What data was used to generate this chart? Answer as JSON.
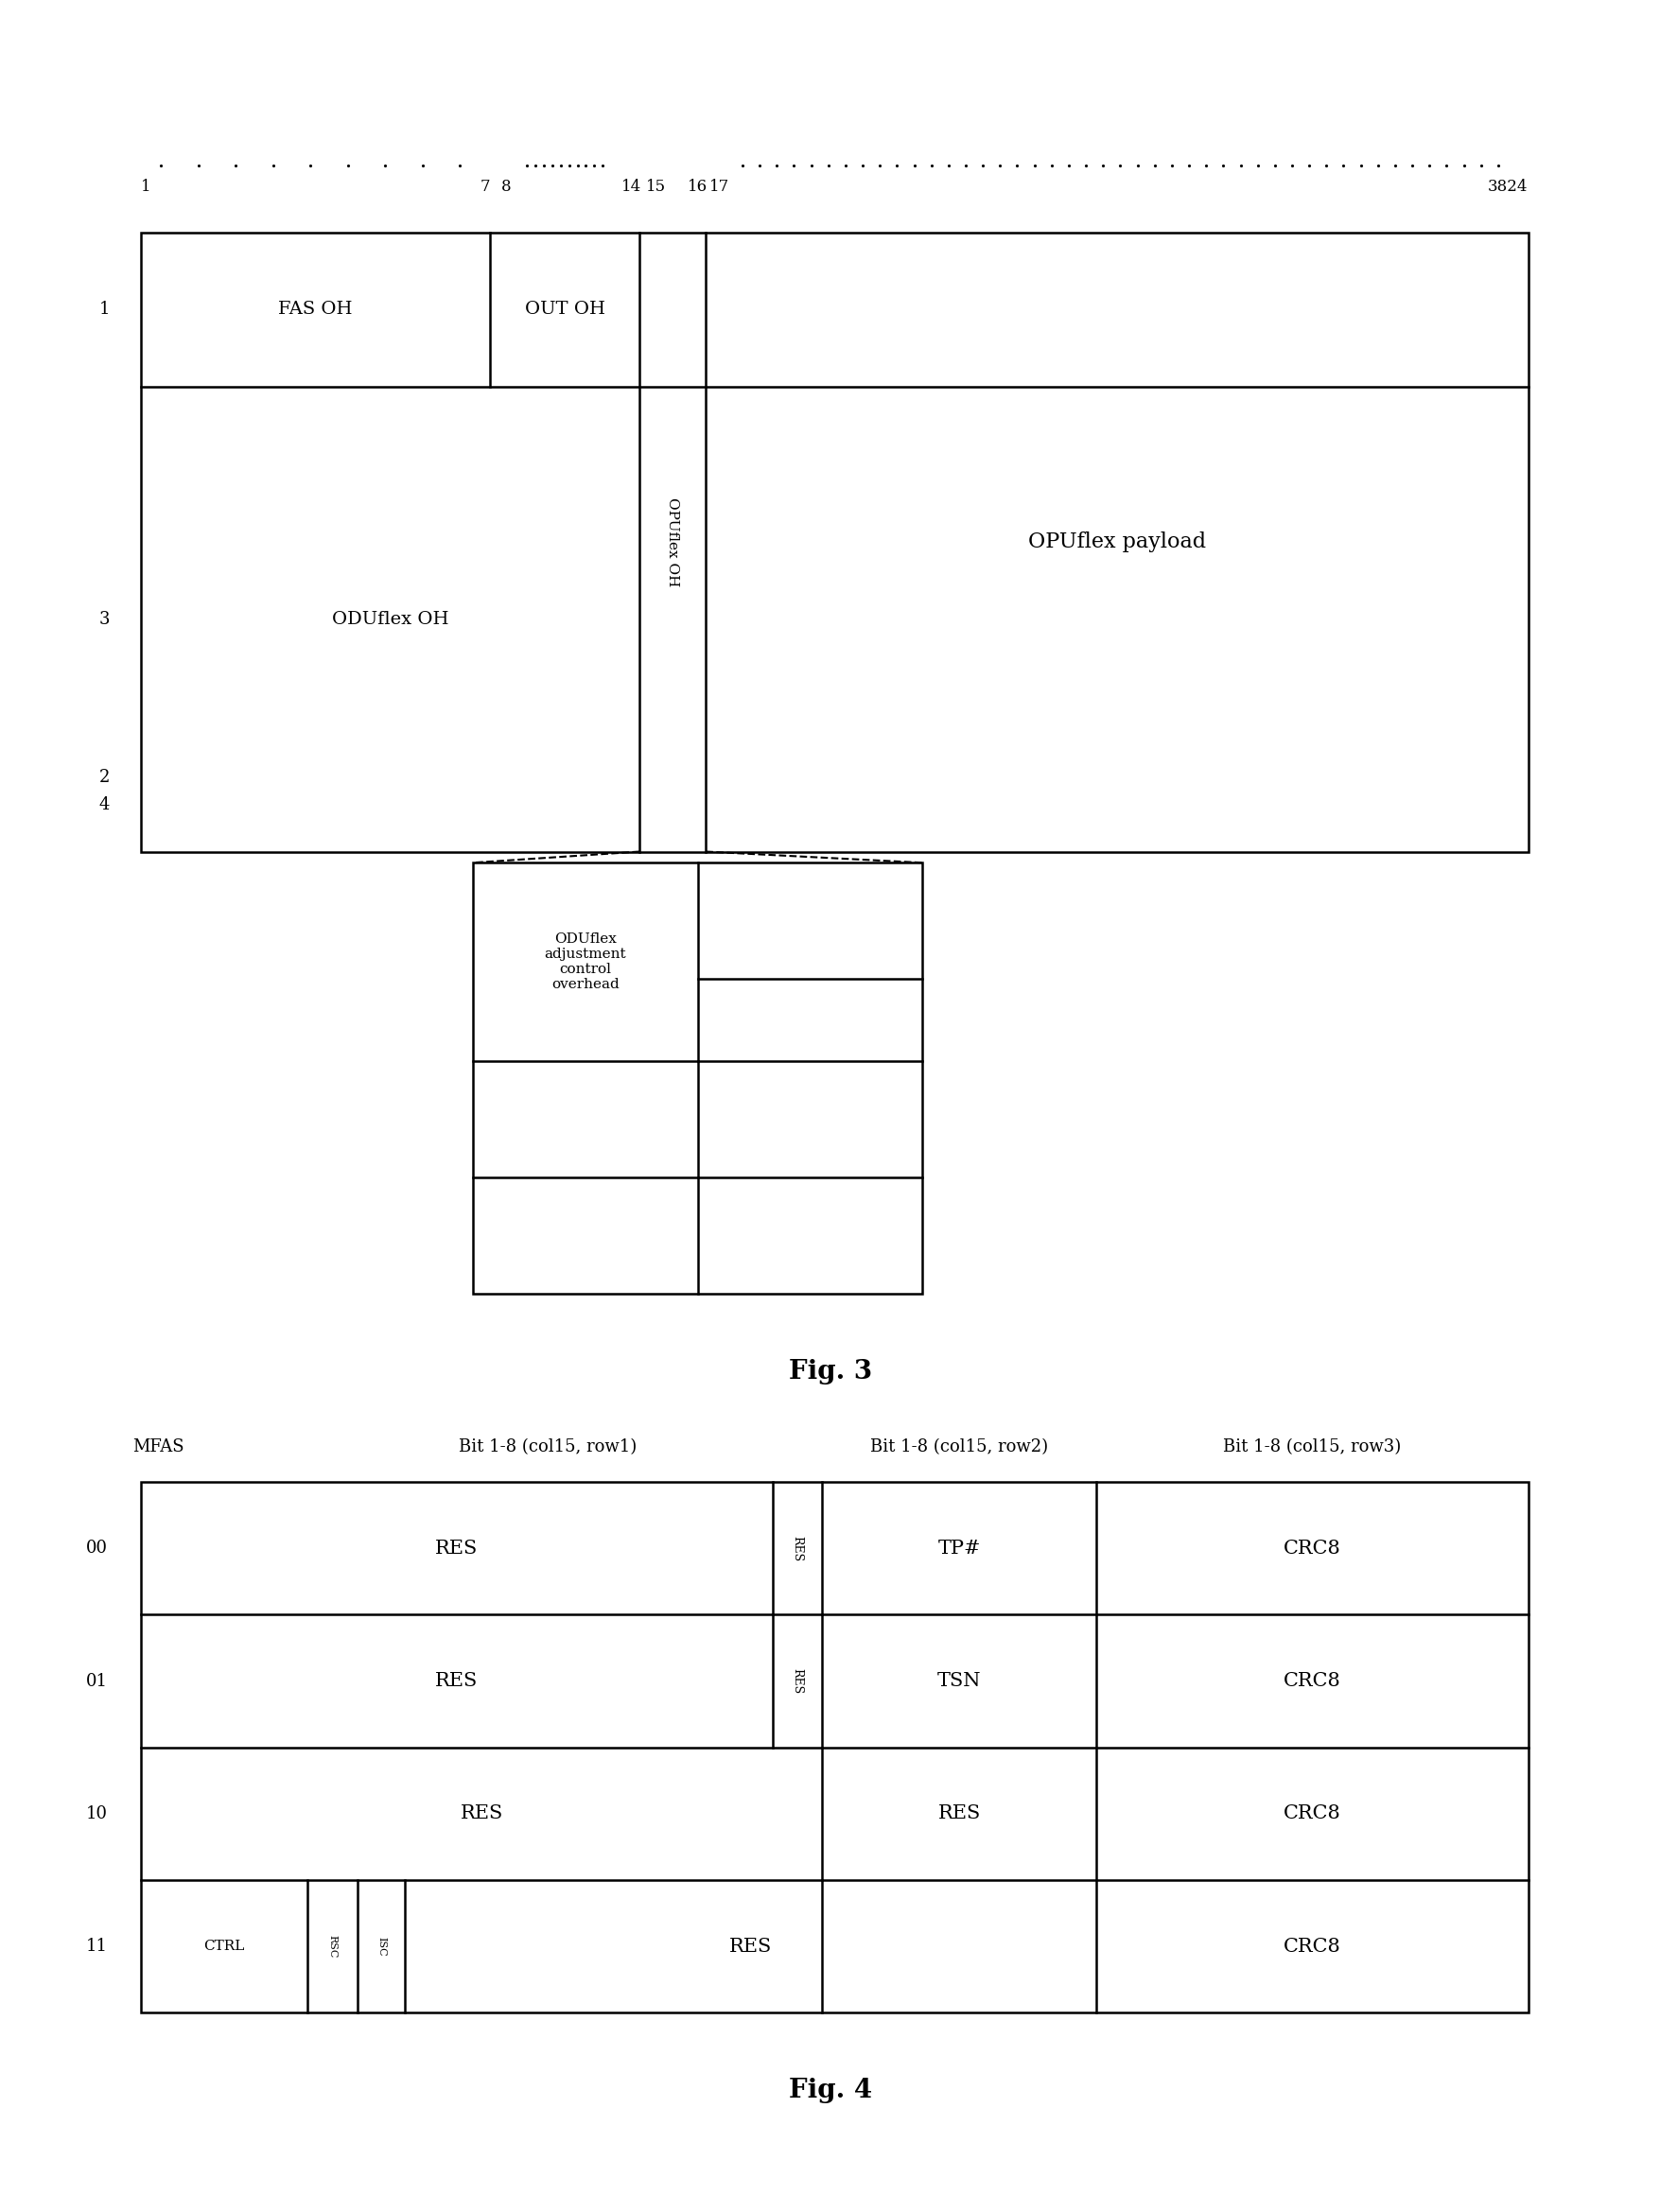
{
  "background": "#ffffff",
  "fig3": {
    "title": "Fig. 3",
    "row_labels": [
      "1",
      "2",
      "3",
      "4"
    ],
    "cell_labels": {
      "fas_oh": "FAS OH",
      "out_oh": "OUT OH",
      "oduflex_oh": "ODUflex OH",
      "opuflex_oh": "OPUflex OH",
      "opuflex_payload": "OPUflex payload"
    },
    "zoom_label": "ODUflex\nadjustment\ncontrol\noverhead"
  },
  "fig4": {
    "title": "Fig. 4",
    "header_labels": [
      "MFAS",
      "Bit 1-8 (col15, row1)",
      "Bit 1-8 (col15, row2)",
      "Bit 1-8 (col15, row3)"
    ],
    "row_labels": [
      "00",
      "01",
      "10",
      "11"
    ],
    "cell_contents": {
      "r00": [
        "RES",
        "RES",
        "TP#",
        "CRC8"
      ],
      "r01": [
        "RES",
        "RES",
        "TSN",
        "CRC8"
      ],
      "r10": [
        "RES",
        "RES",
        "CRC8"
      ],
      "r11": [
        "CTRL",
        "RSC",
        "ISC",
        "RES",
        "CRC8"
      ]
    }
  }
}
